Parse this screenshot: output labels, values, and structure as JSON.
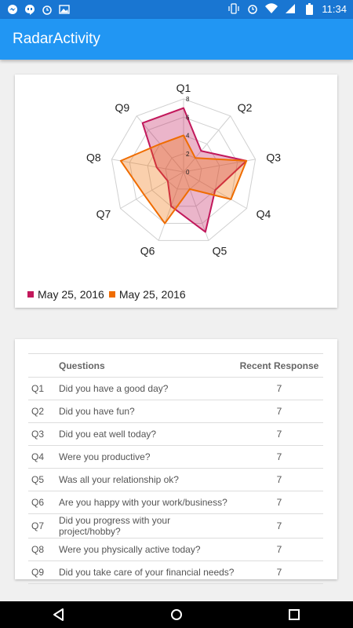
{
  "status_bar": {
    "time": "11:34",
    "left_icons": [
      "messenger-icon",
      "hangouts-icon",
      "alarm-icon",
      "image-icon"
    ],
    "right_icons": [
      "vibrate-icon",
      "alarm-icon",
      "wifi-icon",
      "signal-icon",
      "battery-icon"
    ]
  },
  "app_bar": {
    "title": "RadarActivity"
  },
  "chart_data": {
    "type": "radar",
    "axes": [
      "Q1",
      "Q2",
      "Q3",
      "Q4",
      "Q5",
      "Q6",
      "Q7",
      "Q8",
      "Q9"
    ],
    "scale_ticks": [
      "0",
      "2",
      "4",
      "6",
      "8"
    ],
    "range": [
      0,
      8
    ],
    "series": [
      {
        "name": "May 25, 2016",
        "color": "#c2185b",
        "values": [
          7,
          3,
          7,
          4,
          7,
          4,
          2,
          3,
          7
        ]
      },
      {
        "name": "May 25, 2016",
        "color": "#ef6c00",
        "values": [
          4,
          2,
          7,
          6,
          2,
          6,
          5,
          7,
          4
        ]
      }
    ]
  },
  "table": {
    "headers": [
      "",
      "Questions",
      "Recent Response"
    ],
    "rows": [
      {
        "id": "Q1",
        "question": "Did you have a good day?",
        "response": "7"
      },
      {
        "id": "Q2",
        "question": "Did you have fun?",
        "response": "7"
      },
      {
        "id": "Q3",
        "question": "Did you eat well today?",
        "response": "7"
      },
      {
        "id": "Q4",
        "question": "Were you productive?",
        "response": "7"
      },
      {
        "id": "Q5",
        "question": "Was all your relationship ok?",
        "response": "7"
      },
      {
        "id": "Q6",
        "question": "Are you happy with your work/business?",
        "response": "7"
      },
      {
        "id": "Q7",
        "question": "Did you progress with your project/hobby?",
        "response": "7"
      },
      {
        "id": "Q8",
        "question": "Were you physically active today?",
        "response": "7"
      },
      {
        "id": "Q9",
        "question": "Did you take care of your financial needs?",
        "response": "7"
      }
    ]
  },
  "nav_bar": {
    "buttons": [
      "back-icon",
      "home-icon",
      "recents-icon"
    ]
  }
}
